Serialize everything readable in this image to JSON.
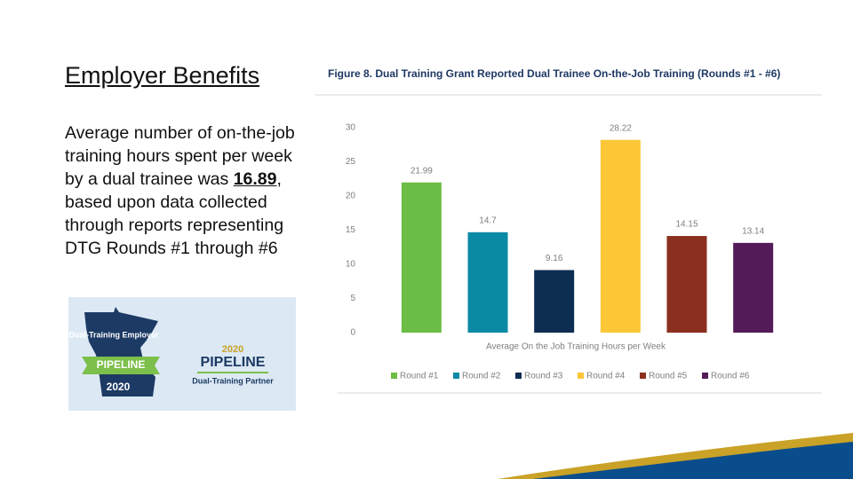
{
  "slide": {
    "heading": "Employer Benefits",
    "body_before": "Average number of on-the-job training hours spent per week by a dual trainee was ",
    "body_highlight": "16.89",
    "body_after": ", based upon data collected through reports representing DTG Rounds #1 through #6"
  },
  "logo": {
    "left_title": "Dual-Training Employer",
    "left_banner": "PIPELINE",
    "left_year": "2020",
    "right_year": "2020",
    "right_name": "PIPELINE",
    "right_subtitle": "Dual-Training Partner"
  },
  "chart_data": {
    "type": "bar",
    "title": "Figure 8. Dual Training Grant Reported Dual Trainee On-the-Job Training (Rounds #1 - #6)",
    "x_label": "Average On the Job Training Hours per Week",
    "categories": [
      null
    ],
    "series": [
      {
        "name": "Round #1",
        "color": "#6bbd45",
        "values": [
          21.99
        ]
      },
      {
        "name": "Round #2",
        "color": "#0b8aa6",
        "values": [
          14.7
        ]
      },
      {
        "name": "Round #3",
        "color": "#0d2d52",
        "values": [
          9.16
        ]
      },
      {
        "name": "Round #4",
        "color": "#fcc737",
        "values": [
          28.22
        ]
      },
      {
        "name": "Round #5",
        "color": "#8b2f1f",
        "values": [
          14.15
        ]
      },
      {
        "name": "Round #6",
        "color": "#551b59",
        "values": [
          13.14
        ]
      }
    ],
    "ylim": [
      0,
      30
    ],
    "yticks": [
      0,
      5,
      10,
      15,
      20,
      25,
      30
    ],
    "grid": false,
    "legend": "bottom"
  }
}
